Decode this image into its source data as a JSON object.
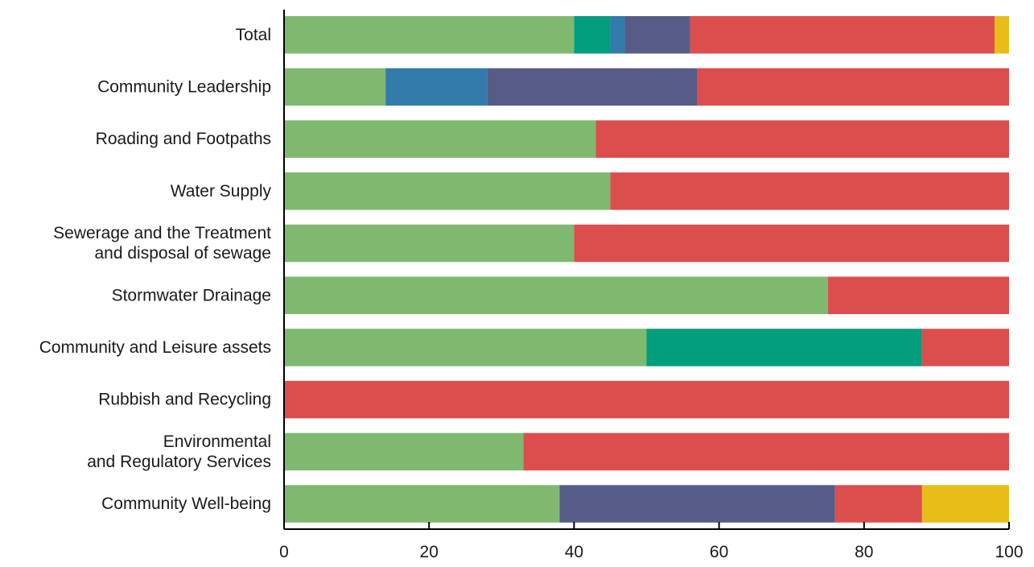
{
  "chart_data": {
    "type": "bar",
    "orientation": "horizontal",
    "stacked": true,
    "title": "",
    "xlabel": "",
    "ylabel": "",
    "xlim": [
      0,
      100
    ],
    "xticks": [
      0,
      20,
      40,
      60,
      80,
      100
    ],
    "grid": false,
    "legend": "none",
    "categories": [
      [
        "Total"
      ],
      [
        "Community Leadership"
      ],
      [
        "Roading and Footpaths"
      ],
      [
        "Water Supply"
      ],
      [
        "Sewerage and the Treatment",
        "and disposal of sewage"
      ],
      [
        "Stormwater Drainage"
      ],
      [
        "Community and Leisure assets"
      ],
      [
        "Rubbish and Recycling"
      ],
      [
        "Environmental",
        "and Regulatory Services"
      ],
      [
        "Community Well-being"
      ]
    ],
    "series": [
      {
        "color": "#7fb96f",
        "values": [
          40,
          14,
          43,
          45,
          40,
          75,
          50,
          0,
          33,
          38
        ]
      },
      {
        "color": "#039e7e",
        "values": [
          5,
          0,
          0,
          0,
          0,
          0,
          38,
          0,
          0,
          0
        ]
      },
      {
        "color": "#327bab",
        "values": [
          2,
          14,
          0,
          0,
          0,
          0,
          0,
          0,
          0,
          0
        ]
      },
      {
        "color": "#575c87",
        "values": [
          9,
          29,
          0,
          0,
          0,
          0,
          0,
          0,
          0,
          38
        ]
      },
      {
        "color": "#dc4e4e",
        "values": [
          42,
          43,
          57,
          55,
          60,
          25,
          12,
          100,
          67,
          12
        ]
      },
      {
        "color": "#e8bd17",
        "values": [
          2,
          0,
          0,
          0,
          0,
          0,
          0,
          0,
          0,
          12
        ]
      }
    ]
  }
}
